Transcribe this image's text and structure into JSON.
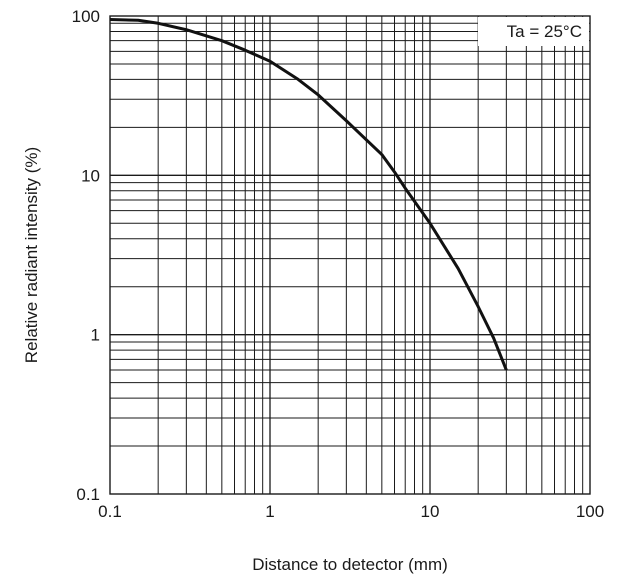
{
  "chart_data": {
    "type": "line",
    "xscale": "log",
    "yscale": "log",
    "xlim": [
      0.1,
      100
    ],
    "ylim": [
      0.1,
      100
    ],
    "grid": true,
    "xlabel": "Distance to detector (mm)",
    "ylabel": "Relative radiant intensity (%)",
    "x_ticks": [
      "0.1",
      "1",
      "10",
      "100"
    ],
    "y_ticks": [
      "0.1",
      "1",
      "10",
      "100"
    ],
    "annotation": "Ta = 25°C",
    "series": [
      {
        "x": [
          0.1,
          0.15,
          0.2,
          0.3,
          0.5,
          0.7,
          1,
          1.5,
          2,
          3,
          5,
          6,
          7,
          10,
          15,
          20,
          25,
          30
        ],
        "y": [
          95,
          94,
          90,
          82,
          70,
          61,
          52,
          40,
          32,
          22,
          13.5,
          10.5,
          8.3,
          5,
          2.6,
          1.5,
          0.95,
          0.6
        ]
      }
    ],
    "line_color": "#111111",
    "grid_color": "#1a1a1a"
  }
}
